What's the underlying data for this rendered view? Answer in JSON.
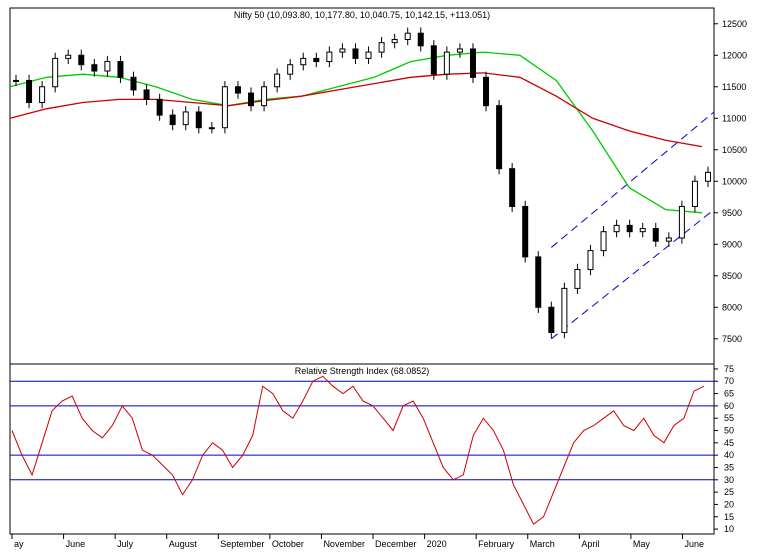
{
  "chart_data": [
    {
      "type": "candlestick",
      "title": "Nifty 50 (10,093.80, 10,177.80, 10,040.75, 10,142.15, +113.051)",
      "y_ticks": [
        7500,
        8000,
        8500,
        9000,
        9500,
        10000,
        10500,
        11000,
        11500,
        12000,
        12500
      ],
      "ylim": [
        7100,
        12750
      ],
      "x_ticks": [
        "ay",
        "June",
        "July",
        "August",
        "September",
        "October",
        "November",
        "December",
        "2020",
        "February",
        "March",
        "April",
        "May",
        "June"
      ],
      "price_series": [
        {
          "month": "ay",
          "close": 11600
        },
        {
          "month": "ay",
          "close": 11250
        },
        {
          "month": "ay",
          "close": 11500
        },
        {
          "month": "June",
          "close": 11950
        },
        {
          "month": "June",
          "close": 12000
        },
        {
          "month": "June",
          "close": 11850
        },
        {
          "month": "June",
          "close": 11750
        },
        {
          "month": "July",
          "close": 11900
        },
        {
          "month": "July",
          "close": 11650
        },
        {
          "month": "July",
          "close": 11450
        },
        {
          "month": "July",
          "close": 11300
        },
        {
          "month": "August",
          "close": 11050
        },
        {
          "month": "August",
          "close": 10900
        },
        {
          "month": "August",
          "close": 11100
        },
        {
          "month": "August",
          "close": 10850
        },
        {
          "month": "September",
          "close": 10850
        },
        {
          "month": "September",
          "close": 11500
        },
        {
          "month": "September",
          "close": 11400
        },
        {
          "month": "October",
          "close": 11200
        },
        {
          "month": "October",
          "close": 11500
        },
        {
          "month": "October",
          "close": 11700
        },
        {
          "month": "October",
          "close": 11850
        },
        {
          "month": "November",
          "close": 11950
        },
        {
          "month": "November",
          "close": 11900
        },
        {
          "month": "November",
          "close": 12050
        },
        {
          "month": "November",
          "close": 12100
        },
        {
          "month": "December",
          "close": 11950
        },
        {
          "month": "December",
          "close": 12050
        },
        {
          "month": "December",
          "close": 12200
        },
        {
          "month": "2020",
          "close": 12250
        },
        {
          "month": "2020",
          "close": 12350
        },
        {
          "month": "2020",
          "close": 12150
        },
        {
          "month": "February",
          "close": 11700
        },
        {
          "month": "February",
          "close": 12050
        },
        {
          "month": "February",
          "close": 12100
        },
        {
          "month": "February",
          "close": 11650
        },
        {
          "month": "March",
          "close": 11200
        },
        {
          "month": "March",
          "close": 10200
        },
        {
          "month": "March",
          "close": 9600
        },
        {
          "month": "March",
          "close": 8800
        },
        {
          "month": "March",
          "close": 8000
        },
        {
          "month": "March",
          "close": 7600
        },
        {
          "month": "April",
          "close": 8300
        },
        {
          "month": "April",
          "close": 8600
        },
        {
          "month": "April",
          "close": 8900
        },
        {
          "month": "April",
          "close": 9200
        },
        {
          "month": "April",
          "close": 9300
        },
        {
          "month": "May",
          "close": 9200
        },
        {
          "month": "May",
          "close": 9250
        },
        {
          "month": "May",
          "close": 9050
        },
        {
          "month": "May",
          "close": 9100
        },
        {
          "month": "June",
          "close": 9600
        },
        {
          "month": "June",
          "close": 10000
        },
        {
          "month": "June",
          "close": 10142
        }
      ],
      "moving_averages": [
        {
          "color": "#00cc00",
          "values": [
            11500,
            11650,
            11700,
            11650,
            11500,
            11300,
            11200,
            11300,
            11350,
            11500,
            11650,
            11900,
            12000,
            12050,
            12000,
            11600,
            10800,
            9900,
            9550,
            9500
          ]
        },
        {
          "color": "#cc0000",
          "values": [
            11000,
            11150,
            11250,
            11300,
            11300,
            11250,
            11200,
            11280,
            11350,
            11450,
            11550,
            11650,
            11700,
            11720,
            11650,
            11350,
            11000,
            10800,
            10650,
            10550
          ]
        }
      ],
      "trend_channel": {
        "color": "#0000cc",
        "lower_from": 7500,
        "lower_to": 9550,
        "upper_from": 8950,
        "upper_to": 11100
      }
    },
    {
      "type": "line",
      "title": "Relative Strength Index (68.0852)",
      "y_ticks": [
        10,
        15,
        20,
        25,
        30,
        35,
        40,
        45,
        50,
        55,
        60,
        65,
        70,
        75
      ],
      "ylim": [
        8,
        77
      ],
      "reference_lines": [
        70,
        60,
        40,
        30
      ],
      "color": "#cc0000",
      "series_values": [
        50,
        40,
        32,
        45,
        58,
        62,
        64,
        55,
        50,
        47,
        52,
        60,
        55,
        42,
        40,
        36,
        32,
        24,
        30,
        40,
        45,
        42,
        35,
        40,
        48,
        68,
        65,
        58,
        55,
        62,
        70,
        72,
        68,
        65,
        68,
        62,
        60,
        55,
        50,
        60,
        62,
        55,
        45,
        35,
        30,
        32,
        48,
        55,
        50,
        42,
        28,
        20,
        12,
        15,
        25,
        35,
        45,
        50,
        52,
        55,
        58,
        52,
        50,
        55,
        48,
        45,
        52,
        55,
        66,
        68
      ]
    }
  ]
}
